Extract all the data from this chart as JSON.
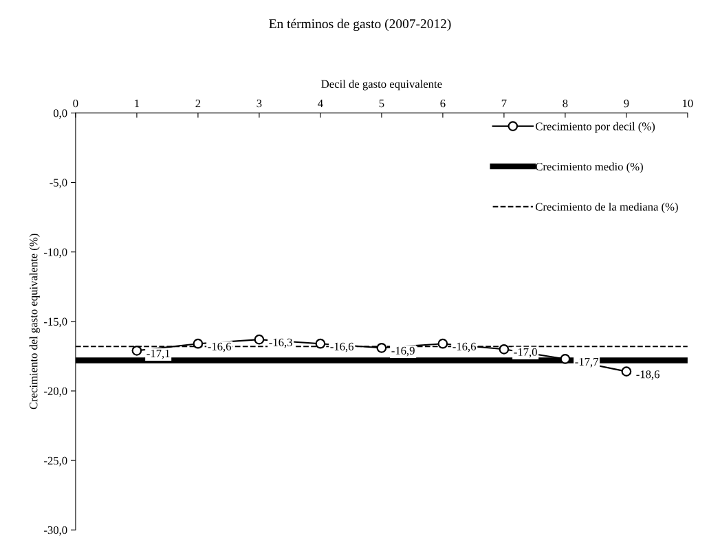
{
  "chart_data": {
    "type": "line",
    "title": "En términos de gasto (2007-2012)",
    "xlabel": "Decil de gasto equivalente",
    "ylabel": "Crecimiento del gasto equivalente (%)",
    "x": [
      1,
      2,
      3,
      4,
      5,
      6,
      7,
      8,
      9
    ],
    "series": [
      {
        "name": "Crecimiento por decil (%)",
        "color": "#000000",
        "values": [
          -17.1,
          -16.6,
          -16.3,
          -16.6,
          -16.9,
          -16.6,
          -17.0,
          -17.7,
          -18.6
        ],
        "value_labels": [
          "-17,1",
          "-16,6",
          "-16,3",
          "-16,6",
          "-16,9",
          "-16,6",
          "-17,0",
          "-17,7",
          "-18,6"
        ]
      }
    ],
    "ref_lines": [
      {
        "axis": "y",
        "value": -17.8,
        "label": "Crecimiento medio (%)",
        "color": "#000000",
        "line_style": "solid"
      },
      {
        "axis": "y",
        "value": -16.8,
        "label": "Crecimiento de la mediana (%)",
        "color": "#000000",
        "line_style": "dashed"
      }
    ],
    "xlim": [
      0,
      10
    ],
    "xticks": [
      0,
      1,
      2,
      3,
      4,
      5,
      6,
      7,
      8,
      9,
      10
    ],
    "ylim": [
      -30,
      0
    ],
    "yticks": [
      {
        "value": -30,
        "label": "-30,0"
      },
      {
        "value": -25,
        "label": "-25,0"
      },
      {
        "value": -20,
        "label": "-20,0"
      },
      {
        "value": -15,
        "label": "-15,0"
      },
      {
        "value": -10,
        "label": "-10,0"
      },
      {
        "value": -5,
        "label": "-5,0"
      },
      {
        "value": 0,
        "label": "0,0"
      }
    ],
    "marker": "circle",
    "line_style": "solid",
    "grid": false,
    "legend": "top right"
  }
}
